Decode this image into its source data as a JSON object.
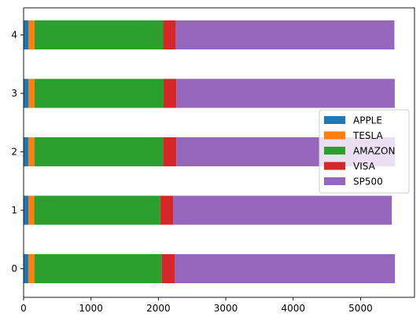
{
  "chart_data": {
    "type": "bar",
    "orientation": "horizontal",
    "stacked": true,
    "title": "",
    "xlabel": "",
    "ylabel": "",
    "categories": [
      "0",
      "1",
      "2",
      "3",
      "4"
    ],
    "xlim": [
      0,
      5800
    ],
    "xticks": [
      0,
      1000,
      2000,
      3000,
      4000,
      5000
    ],
    "grid": false,
    "legend_position": "center-right",
    "series": [
      {
        "name": "APPLE",
        "color": "#1f77b4",
        "values": [
          72,
          70,
          72,
          74,
          74
        ]
      },
      {
        "name": "TESLA",
        "color": "#ff7f0e",
        "values": [
          88,
          88,
          88,
          88,
          88
        ]
      },
      {
        "name": "AMAZON",
        "color": "#2ca02c",
        "values": [
          1890,
          1870,
          1910,
          1915,
          1910
        ]
      },
      {
        "name": "VISA",
        "color": "#d62728",
        "values": [
          195,
          190,
          195,
          190,
          185
        ]
      },
      {
        "name": "SP500",
        "color": "#9467bd",
        "values": [
          3265,
          3245,
          3245,
          3240,
          3245
        ]
      }
    ]
  }
}
